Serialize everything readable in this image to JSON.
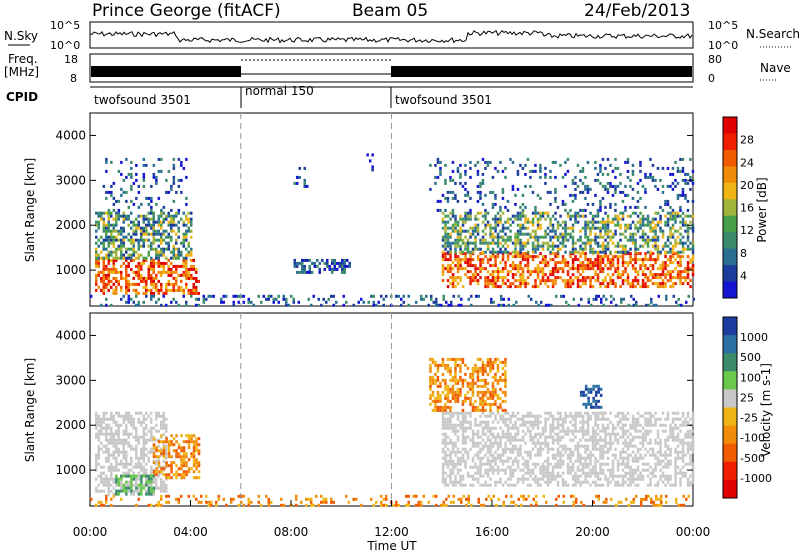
{
  "header": {
    "station": "Prince George (fitACF)",
    "beam": "Beam 05",
    "date": "24/Feb/2013"
  },
  "strips": {
    "nsky_label": "N.Sky",
    "nsky_ticks": [
      "10^5",
      "10^0"
    ],
    "nsearch_label": "N.Search",
    "nsearch_ticks": [
      "10^5",
      "10^0"
    ],
    "freq_label": "Freq.",
    "freq_unit": "[MHz]",
    "freq_ticks": [
      "18",
      "8"
    ],
    "nave_label": "Nave",
    "nave_ticks": [
      "80",
      "0"
    ],
    "cpid_label": "CPID",
    "cpid_segments": [
      {
        "label": "twofsound 3501",
        "start_hour": 0,
        "end_hour": 6
      },
      {
        "label": "normal 150",
        "start_hour": 6,
        "end_hour": 12
      },
      {
        "label": "twofsound 3501",
        "start_hour": 12,
        "end_hour": 24
      }
    ]
  },
  "colors": {
    "power_scale": [
      "#1414d2",
      "#1c3c9c",
      "#2a6e92",
      "#3c8a6c",
      "#46a04a",
      "#a0b43c",
      "#f0b414",
      "#f08c0a",
      "#f05a00",
      "#f01e00",
      "#e00000"
    ],
    "velocity_scale": [
      "#1c3ca0",
      "#2a70a0",
      "#3c8c6c",
      "#6cc84c",
      "#c8c8c8",
      "#c8c8c8",
      "#f0b414",
      "#f08c0a",
      "#f05a00",
      "#f01e00",
      "#e00000"
    ]
  },
  "chart_data": [
    {
      "type": "heatmap",
      "name": "power",
      "x_hours": [
        0,
        24
      ],
      "xticks": [
        "00:00",
        "04:00",
        "08:00",
        "12:00",
        "16:00",
        "20:00",
        "00:00"
      ],
      "xlabel": "Time UT",
      "ylabel": "Slant Range [km]",
      "yticks": [
        "1000",
        "2000",
        "3000",
        "4000"
      ],
      "ylim": [
        200,
        4500
      ],
      "colorbar_label": "Power [dB]",
      "colorbar_ticks": [
        "28",
        "24",
        "20",
        "16",
        "12",
        "8",
        "4"
      ],
      "colorbar_range": [
        0,
        30
      ],
      "regions": [
        {
          "t0": 0.2,
          "t1": 4.3,
          "r0": 450,
          "r1": 1250,
          "level": "high"
        },
        {
          "t0": 0.2,
          "t1": 4.0,
          "r0": 1250,
          "r1": 2300,
          "level": "mid"
        },
        {
          "t0": 0.5,
          "t1": 3.8,
          "r0": 2300,
          "r1": 3500,
          "level": "low"
        },
        {
          "t0": 8.1,
          "t1": 8.6,
          "r0": 2800,
          "r1": 3300,
          "level": "low"
        },
        {
          "t0": 11.0,
          "t1": 11.5,
          "r0": 3200,
          "r1": 3600,
          "level": "low"
        },
        {
          "t0": 8.0,
          "t1": 10.3,
          "r0": 950,
          "r1": 1250,
          "level": "low"
        },
        {
          "t0": 14.0,
          "t1": 24.0,
          "r0": 650,
          "r1": 1400,
          "level": "high"
        },
        {
          "t0": 14.0,
          "t1": 24.0,
          "r0": 1400,
          "r1": 2300,
          "level": "mid"
        },
        {
          "t0": 13.5,
          "t1": 24.0,
          "r0": 2300,
          "r1": 3500,
          "level": "low"
        },
        {
          "t0": 0.0,
          "t1": 24.0,
          "r0": 200,
          "r1": 450,
          "level": "low"
        }
      ]
    },
    {
      "type": "heatmap",
      "name": "velocity",
      "x_hours": [
        0,
        24
      ],
      "xticks": [
        "00:00",
        "04:00",
        "08:00",
        "12:00",
        "16:00",
        "20:00",
        "00:00"
      ],
      "xlabel": "Time UT",
      "ylabel": "Slant Range [km]",
      "yticks": [
        "1000",
        "2000",
        "3000",
        "4000"
      ],
      "ylim": [
        200,
        4500
      ],
      "colorbar_label": "Velocity [m s-1]",
      "colorbar_ticks": [
        "1000",
        "500",
        "100",
        "25",
        "-25",
        "-100",
        "-500",
        "-1000"
      ],
      "colorbar_range": [
        -1000,
        1000
      ],
      "regions": [
        {
          "t0": 0.2,
          "t1": 3.0,
          "r0": 450,
          "r1": 2300,
          "level": "grey"
        },
        {
          "t0": 2.5,
          "t1": 4.3,
          "r0": 800,
          "r1": 1800,
          "level": "orange"
        },
        {
          "t0": 1.0,
          "t1": 2.5,
          "r0": 450,
          "r1": 900,
          "level": "green"
        },
        {
          "t0": 14.0,
          "t1": 24.0,
          "r0": 650,
          "r1": 2300,
          "level": "grey"
        },
        {
          "t0": 13.5,
          "t1": 16.5,
          "r0": 2300,
          "r1": 3500,
          "level": "orange"
        },
        {
          "t0": 19.5,
          "t1": 20.3,
          "r0": 2400,
          "r1": 2900,
          "level": "blue"
        },
        {
          "t0": 0.0,
          "t1": 24.0,
          "r0": 200,
          "r1": 450,
          "level": "orange"
        }
      ]
    }
  ]
}
